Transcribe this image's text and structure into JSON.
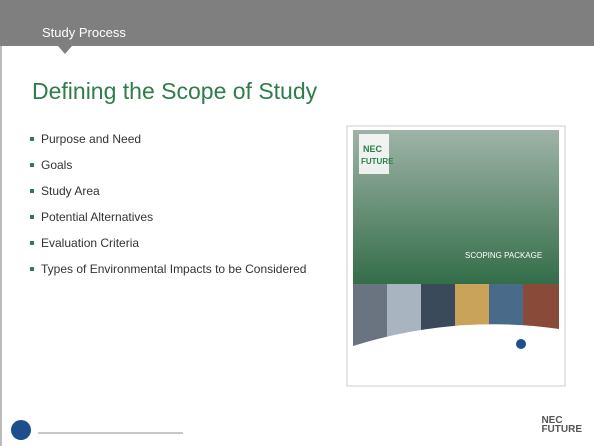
{
  "header": {
    "section": "Study Process"
  },
  "title": "Defining the Scope of Study",
  "bullets": [
    "Purpose and Need",
    "Goals",
    "Study Area",
    "Potential Alternatives",
    "Evaluation Criteria",
    "Types of Environmental Impacts to be Considered"
  ],
  "cover": {
    "logo_line1": "NEC",
    "logo_line2": "FUTURE",
    "label": "SCOPING PACKAGE"
  },
  "footer": {
    "logo_line1": "NEC",
    "logo_line2": "FUTURE"
  }
}
